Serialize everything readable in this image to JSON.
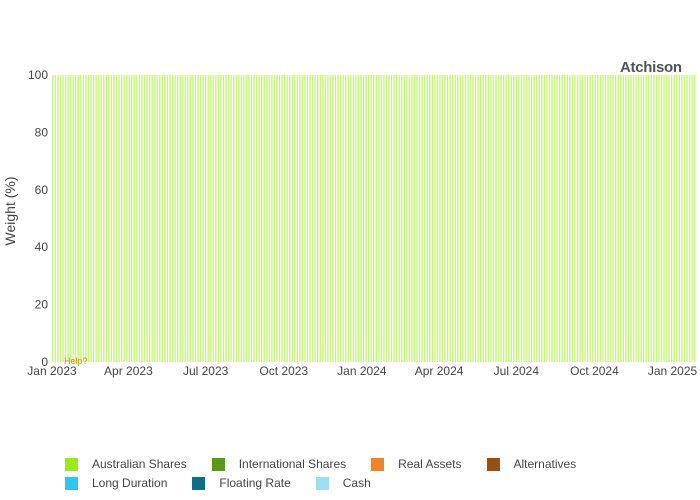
{
  "brand": {
    "name": "Atchison"
  },
  "help_link": {
    "label": "Help?"
  },
  "chart_data": {
    "type": "bar",
    "barmode": "stack",
    "title": "",
    "xlabel": "",
    "ylabel": "Weight (%)",
    "ylim": [
      0,
      100
    ],
    "yticks": [
      0,
      20,
      40,
      60,
      80,
      100
    ],
    "xlim": [
      "2023-01-01",
      "2025-01-31"
    ],
    "xticks": [
      {
        "date": "2023-01-01",
        "label": "Jan 2023"
      },
      {
        "date": "2023-04-01",
        "label": "Apr 2023"
      },
      {
        "date": "2023-07-01",
        "label": "Jul 2023"
      },
      {
        "date": "2023-10-01",
        "label": "Oct 2023"
      },
      {
        "date": "2024-01-01",
        "label": "Jan 2024"
      },
      {
        "date": "2024-04-01",
        "label": "Apr 2024"
      },
      {
        "date": "2024-07-01",
        "label": "Jul 2024"
      },
      {
        "date": "2024-10-01",
        "label": "Oct 2024"
      },
      {
        "date": "2025-01-01",
        "label": "Jan 2025"
      }
    ],
    "x_start": "2023-01-02",
    "x_end": "2025-01-28",
    "x_step_days": 3,
    "legend_position": "bottom",
    "series": [
      {
        "name": "Australian Shares",
        "color": "#99ee11",
        "constant_value": 100
      },
      {
        "name": "International Shares",
        "color": "#5a9a10",
        "constant_value": 0
      },
      {
        "name": "Real Assets",
        "color": "#f58220",
        "constant_value": 0
      },
      {
        "name": "Alternatives",
        "color": "#9b4f0f",
        "constant_value": 0
      },
      {
        "name": "Long Duration",
        "color": "#29c8f0",
        "constant_value": 0
      },
      {
        "name": "Floating Rate",
        "color": "#0e6e8a",
        "constant_value": 0
      },
      {
        "name": "Cash",
        "color": "#9fdcf5",
        "constant_value": 0
      }
    ]
  }
}
